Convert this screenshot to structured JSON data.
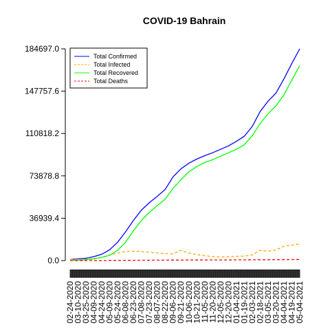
{
  "chart_data": {
    "type": "line",
    "title": "COVID-19 Bahrain",
    "xlabel": "",
    "ylabel": "",
    "ylim": [
      0,
      184697.0
    ],
    "yticks": [
      "0.0",
      "36939.4",
      "73878.8",
      "110818.2",
      "147757.6",
      "184697.0"
    ],
    "ytick_values": [
      0,
      36939.4,
      73878.8,
      110818.2,
      147757.6,
      184697.0
    ],
    "xlim": [
      "2020-02-24",
      "2021-05-04"
    ],
    "xticks": [
      "02-24-2020",
      "03-10-2020",
      "03-25-2020",
      "04-09-2020",
      "04-24-2020",
      "05-09-2020",
      "05-24-2020",
      "06-08-2020",
      "06-23-2020",
      "07-08-2020",
      "07-23-2020",
      "08-07-2020",
      "08-22-2020",
      "09-06-2020",
      "09-21-2020",
      "10-06-2020",
      "10-21-2020",
      "11-05-2020",
      "11-20-2020",
      "12-05-2020",
      "12-20-2020",
      "01-04-2021",
      "01-19-2021",
      "02-03-2021",
      "02-18-2021",
      "03-05-2021",
      "03-20-2021",
      "04-04-2021",
      "04-19-2021",
      "05-04-2021"
    ],
    "grid": false,
    "legend_position": "top-left",
    "x": [
      "2020-02-24",
      "2020-03-10",
      "2020-03-25",
      "2020-04-09",
      "2020-04-24",
      "2020-05-09",
      "2020-05-24",
      "2020-06-08",
      "2020-06-23",
      "2020-07-08",
      "2020-07-23",
      "2020-08-07",
      "2020-08-22",
      "2020-09-06",
      "2020-09-21",
      "2020-10-06",
      "2020-10-21",
      "2020-11-05",
      "2020-11-20",
      "2020-12-05",
      "2020-12-20",
      "2021-01-04",
      "2021-01-19",
      "2021-02-03",
      "2021-02-18",
      "2021-03-05",
      "2021-03-20",
      "2021-04-04",
      "2021-04-19",
      "2021-05-04"
    ],
    "series": [
      {
        "name": "Total Confirmed",
        "color": "#0000ff",
        "dash": "solid",
        "values": [
          1000,
          1500,
          2000,
          3500,
          5500,
          9500,
          16000,
          25000,
          35000,
          44000,
          50500,
          56000,
          62000,
          73000,
          80000,
          85000,
          88500,
          91500,
          94000,
          97000,
          100000,
          104000,
          108500,
          117000,
          130000,
          139000,
          146000,
          158500,
          172000,
          184697
        ]
      },
      {
        "name": "Total Infected",
        "color": "#ffa500",
        "dash": "dashed",
        "values": [
          1000,
          1000,
          1200,
          1800,
          3000,
          4800,
          6500,
          8000,
          8200,
          7800,
          7300,
          6600,
          6100,
          5800,
          9000,
          6500,
          5200,
          4200,
          3500,
          3100,
          3300,
          3700,
          3900,
          5000,
          9000,
          8200,
          9200,
          12500,
          13500,
          14500
        ]
      },
      {
        "name": "Total Recovered",
        "color": "#00ff00",
        "dash": "solid",
        "values": [
          0,
          300,
          700,
          1500,
          2800,
          4600,
          9000,
          16000,
          26000,
          35000,
          42000,
          48000,
          53500,
          63000,
          70500,
          77500,
          82000,
          85500,
          88000,
          91000,
          94000,
          97000,
          101000,
          109000,
          119500,
          128000,
          135000,
          144500,
          157500,
          170000
        ]
      },
      {
        "name": "Total Deaths",
        "color": "#ff0000",
        "dash": "dashed",
        "values": [
          0,
          0,
          10,
          20,
          50,
          90,
          130,
          170,
          220,
          270,
          310,
          350,
          380,
          410,
          440,
          460,
          480,
          500,
          520,
          540,
          560,
          590,
          620,
          650,
          690,
          730,
          770,
          820,
          880,
          960
        ]
      }
    ]
  }
}
